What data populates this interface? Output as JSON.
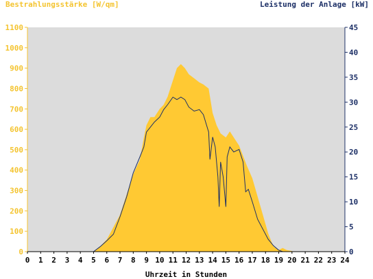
{
  "chart_data": {
    "type": "area",
    "y_left_label": "Bestrahlungsstärke [W/qm]",
    "y_right_label": "Leistung der Anlage [kW]",
    "xlabel": "Uhrzeit in Stunden",
    "xlim": [
      0,
      24
    ],
    "y_left_lim": [
      0,
      1100
    ],
    "y_right_lim": [
      0,
      45
    ],
    "x_ticks": [
      "0",
      "1",
      "2",
      "3",
      "4",
      "5",
      "6",
      "7",
      "8",
      "9",
      "10",
      "11",
      "12",
      "13",
      "14",
      "15",
      "16",
      "17",
      "18",
      "19",
      "20",
      "21",
      "22",
      "23",
      "24"
    ],
    "y_left_ticks": [
      "0",
      "100",
      "200",
      "300",
      "400",
      "500",
      "600",
      "700",
      "800",
      "900",
      "1000",
      "1100"
    ],
    "y_right_ticks": [
      "0",
      "5",
      "10",
      "15",
      "20",
      "25",
      "30",
      "35",
      "40",
      "45"
    ],
    "colors": {
      "irradiance": "#ffc933",
      "power": "#1c2f66",
      "plot_bg": "#dcdcdc",
      "left_axis": "#f4c430",
      "right_axis": "#1c2f66"
    },
    "series": [
      {
        "name": "Bestrahlungsstärke [W/qm]",
        "axis": "left",
        "x": [
          0,
          5,
          5.1,
          5.5,
          6,
          6.5,
          7,
          7.5,
          8,
          8.5,
          8.8,
          9,
          9.3,
          9.6,
          10,
          10.3,
          10.6,
          11,
          11.3,
          11.6,
          11.9,
          12.2,
          12.6,
          13,
          13.3,
          13.7,
          14,
          14.3,
          14.6,
          15,
          15.3,
          15.6,
          16,
          16.3,
          16.6,
          17,
          17.4,
          17.8,
          18.2,
          18.6,
          19,
          19.3,
          19.6,
          20,
          20.1,
          24
        ],
        "values": [
          0,
          0,
          5,
          25,
          60,
          120,
          180,
          280,
          380,
          450,
          560,
          620,
          660,
          660,
          700,
          720,
          760,
          840,
          900,
          920,
          900,
          870,
          850,
          830,
          820,
          800,
          680,
          620,
          580,
          560,
          590,
          560,
          520,
          470,
          420,
          360,
          270,
          180,
          90,
          25,
          8,
          18,
          8,
          3,
          0,
          0
        ]
      },
      {
        "name": "Leistung der Anlage [kW]",
        "axis": "right",
        "x": [
          0,
          5,
          5.1,
          5.5,
          6,
          6.5,
          7,
          7.5,
          8,
          8.5,
          8.8,
          9,
          9.3,
          9.6,
          10,
          10.3,
          10.6,
          11,
          11.3,
          11.6,
          11.9,
          12.2,
          12.6,
          13,
          13.3,
          13.7,
          13.8,
          14,
          14.2,
          14.4,
          14.5,
          14.6,
          14.8,
          15,
          15.1,
          15.3,
          15.6,
          16,
          16.3,
          16.5,
          16.7,
          17,
          17.4,
          17.8,
          18.2,
          18.6,
          19,
          19.3,
          24
        ],
        "values": [
          0,
          0,
          0.2,
          1.0,
          2.2,
          3.5,
          7.0,
          11,
          15.8,
          19,
          21,
          24,
          25,
          26,
          27,
          28.5,
          29.5,
          31,
          30.5,
          31,
          30.5,
          29,
          28.2,
          28.5,
          27.5,
          24,
          18.5,
          23,
          21,
          15,
          9,
          18,
          15,
          9,
          19,
          21,
          20,
          20.5,
          18,
          12,
          12.5,
          10,
          6.5,
          4.5,
          2.5,
          1.2,
          0.3,
          0,
          0
        ]
      }
    ]
  }
}
